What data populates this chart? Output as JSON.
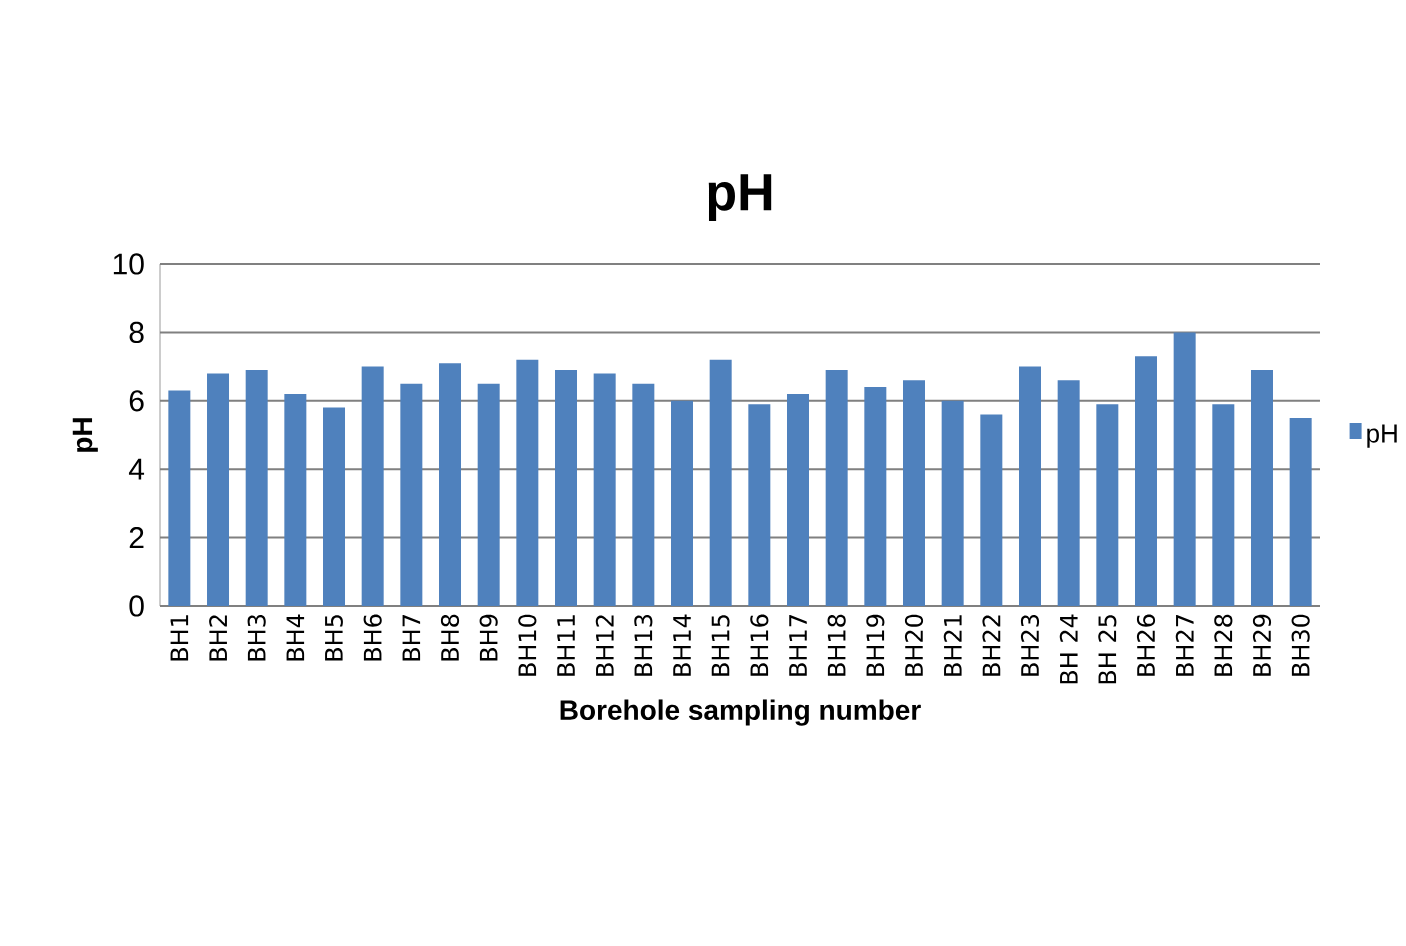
{
  "chart_data": {
    "type": "bar",
    "title": "pH",
    "xlabel": "Borehole sampling number",
    "ylabel": "pH",
    "categories": [
      "BH1",
      "BH2",
      "BH3",
      "BH4",
      "BH5",
      "BH6",
      "BH7",
      "BH8",
      "BH9",
      "BH10",
      "BH11",
      "BH12",
      "BH13",
      "BH14",
      "BH15",
      "BH16",
      "BH17",
      "BH18",
      "BH19",
      "BH20",
      "BH21",
      "BH22",
      "BH23",
      "BH 24",
      "BH 25",
      "BH26",
      "BH27",
      "BH28",
      "BH29",
      "BH30"
    ],
    "series": [
      {
        "name": "pH",
        "color": "#4f81bd",
        "values": [
          6.3,
          6.8,
          6.9,
          6.2,
          5.8,
          7.0,
          6.5,
          7.1,
          6.5,
          7.2,
          6.9,
          6.8,
          6.5,
          6.0,
          7.2,
          5.9,
          6.2,
          6.9,
          6.4,
          6.6,
          6.0,
          5.6,
          7.0,
          6.6,
          5.9,
          7.3,
          8.0,
          5.9,
          6.9,
          5.5
        ]
      }
    ],
    "ylim": [
      0,
      10
    ],
    "yticks": [
      0,
      2,
      4,
      6,
      8,
      10
    ],
    "grid": "y",
    "legend": "right"
  }
}
